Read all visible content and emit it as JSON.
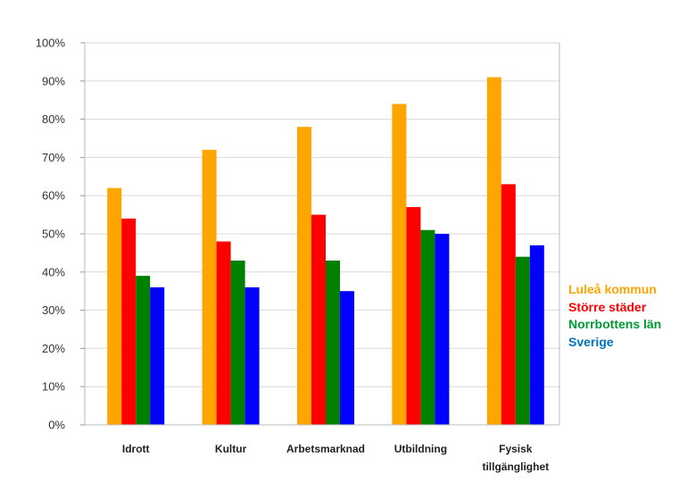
{
  "chart_data": {
    "type": "bar",
    "title": "",
    "xlabel": "",
    "ylabel": "",
    "ylim": [
      0,
      100
    ],
    "y_ticks": [
      "0%",
      "10%",
      "20%",
      "30%",
      "40%",
      "50%",
      "60%",
      "70%",
      "80%",
      "90%",
      "100%"
    ],
    "grid": true,
    "legend_position": "right",
    "categories": [
      [
        "Idrott"
      ],
      [
        "Kultur"
      ],
      [
        "Arbetsmarknad"
      ],
      [
        "Utbildning"
      ],
      [
        "Fysisk",
        "tillgänglighet"
      ]
    ],
    "series": [
      {
        "name": "Luleå kommun",
        "color": "#FFA500",
        "values": [
          62,
          72,
          78,
          84,
          91
        ]
      },
      {
        "name": "Större städer",
        "color": "#FF0000",
        "values": [
          54,
          48,
          55,
          57,
          63
        ]
      },
      {
        "name": "Norrbottens län",
        "color": "#008000",
        "values": [
          39,
          43,
          43,
          51,
          44
        ]
      },
      {
        "name": "Sverige",
        "color": "#0000FF",
        "values": [
          36,
          36,
          35,
          50,
          47
        ]
      }
    ]
  }
}
